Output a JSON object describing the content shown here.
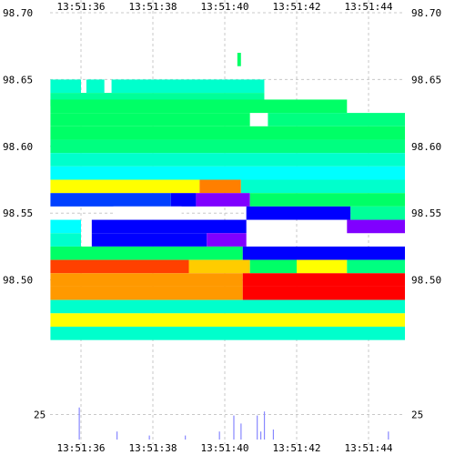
{
  "chart_data": [
    {
      "type": "heatmap",
      "title": "",
      "xlabel": "",
      "ylabel": "",
      "x_ticks": [
        "13:51:36",
        "13:51:38",
        "13:51:40",
        "13:51:42",
        "13:51:44"
      ],
      "x_tick_values_s": [
        0,
        2,
        4,
        6,
        8
      ],
      "y_ticks": [
        "98.70",
        "98.65",
        "98.60",
        "98.55",
        "98.50"
      ],
      "y_tick_values": [
        98.7,
        98.65,
        98.6,
        98.55,
        98.5
      ],
      "ylim": [
        98.4575,
        98.7
      ],
      "grid": true,
      "color_scale": [
        "#ff0000",
        "#ff7f00",
        "#ffff00",
        "#00ff80",
        "#00ffff",
        "#0000ff",
        "#8000ff"
      ],
      "rows": [
        {
          "price": 98.665,
          "segments": [
            {
              "x0": 4.35,
              "x1": 4.45,
              "color": "#00ff66"
            }
          ]
        },
        {
          "price": 98.645,
          "segments": [
            {
              "x0": -0.85,
              "x1": 0.0,
              "color": "#00ffcc"
            },
            {
              "x0": 0.15,
              "x1": 0.65,
              "color": "#00ffcc"
            },
            {
              "x0": 0.85,
              "x1": 5.1,
              "color": "#00ffcc"
            }
          ]
        },
        {
          "price": 98.635,
          "segments": [
            {
              "x0": -0.85,
              "x1": 5.1,
              "color": "#00ff99"
            }
          ]
        },
        {
          "price": 98.63,
          "segments": [
            {
              "x0": -0.85,
              "x1": 7.4,
              "color": "#00ff66"
            }
          ]
        },
        {
          "price": 98.62,
          "segments": [
            {
              "x0": -0.85,
              "x1": 4.7,
              "color": "#00ff66"
            },
            {
              "x0": 5.2,
              "x1": 9.95,
              "color": "#00ff80"
            }
          ]
        },
        {
          "price": 98.61,
          "segments": [
            {
              "x0": -0.85,
              "x1": 9.95,
              "color": "#00ff66"
            }
          ]
        },
        {
          "price": 98.6,
          "segments": [
            {
              "x0": -0.85,
              "x1": 9.95,
              "color": "#00ff80"
            }
          ]
        },
        {
          "price": 98.59,
          "segments": [
            {
              "x0": -0.85,
              "x1": 9.95,
              "color": "#00ffcc"
            }
          ]
        },
        {
          "price": 98.58,
          "segments": [
            {
              "x0": -0.85,
              "x1": 9.95,
              "color": "#00ffff"
            }
          ]
        },
        {
          "price": 98.57,
          "segments": [
            {
              "x0": -0.85,
              "x1": 3.3,
              "color": "#ffff00"
            },
            {
              "x0": 3.3,
              "x1": 4.45,
              "color": "#ff7f00"
            },
            {
              "x0": 4.45,
              "x1": 9.95,
              "color": "#00ffcc"
            }
          ]
        },
        {
          "price": 98.56,
          "segments": [
            {
              "x0": -0.85,
              "x1": 2.5,
              "color": "#0040ff"
            },
            {
              "x0": 2.5,
              "x1": 3.2,
              "color": "#0000ff"
            },
            {
              "x0": 3.2,
              "x1": 4.7,
              "color": "#8000ff"
            },
            {
              "x0": 4.7,
              "x1": 9.95,
              "color": "#00ff66"
            }
          ]
        },
        {
          "price": 98.55,
          "segments": [
            {
              "x0": 0.9,
              "x1": 2.8,
              "color": "#ffffff"
            },
            {
              "x0": 4.6,
              "x1": 7.5,
              "color": "#0000ff"
            },
            {
              "x0": 7.5,
              "x1": 9.95,
              "color": "#00ff99"
            }
          ]
        },
        {
          "price": 98.54,
          "segments": [
            {
              "x0": -0.85,
              "x1": 0.0,
              "color": "#00ffff"
            },
            {
              "x0": 0.3,
              "x1": 4.6,
              "color": "#0000ff"
            },
            {
              "x0": 7.4,
              "x1": 9.95,
              "color": "#8000ff"
            }
          ]
        },
        {
          "price": 98.53,
          "segments": [
            {
              "x0": -0.85,
              "x1": 0.0,
              "color": "#00ffcc"
            },
            {
              "x0": 0.3,
              "x1": 3.5,
              "color": "#0000ff"
            },
            {
              "x0": 3.5,
              "x1": 4.6,
              "color": "#8000ff"
            }
          ]
        },
        {
          "price": 98.52,
          "segments": [
            {
              "x0": -0.85,
              "x1": 4.5,
              "color": "#00ff66"
            },
            {
              "x0": 4.5,
              "x1": 9.95,
              "color": "#0000ff"
            }
          ]
        },
        {
          "price": 98.51,
          "segments": [
            {
              "x0": -0.85,
              "x1": 3.0,
              "color": "#ff4000"
            },
            {
              "x0": 3.0,
              "x1": 4.7,
              "color": "#ffcc00"
            },
            {
              "x0": 4.7,
              "x1": 6.0,
              "color": "#00ff66"
            },
            {
              "x0": 6.0,
              "x1": 7.4,
              "color": "#ffff00"
            },
            {
              "x0": 7.4,
              "x1": 9.95,
              "color": "#00ff80"
            }
          ]
        },
        {
          "price": 98.5,
          "segments": [
            {
              "x0": -0.85,
              "x1": 4.5,
              "color": "#ff9900"
            },
            {
              "x0": 4.5,
              "x1": 9.95,
              "color": "#ff0000"
            }
          ]
        },
        {
          "price": 98.49,
          "segments": [
            {
              "x0": -0.85,
              "x1": 4.5,
              "color": "#ff9900"
            },
            {
              "x0": 4.5,
              "x1": 9.95,
              "color": "#ff0000"
            }
          ]
        },
        {
          "price": 98.48,
          "segments": [
            {
              "x0": -0.85,
              "x1": 9.95,
              "color": "#00ffcc"
            }
          ]
        },
        {
          "price": 98.47,
          "segments": [
            {
              "x0": -0.85,
              "x1": 9.95,
              "color": "#ffff00"
            }
          ]
        },
        {
          "price": 98.46,
          "segments": [
            {
              "x0": -0.85,
              "x1": 9.95,
              "color": "#00ffcc"
            }
          ]
        }
      ]
    },
    {
      "type": "bar",
      "title": "",
      "xlabel": "",
      "ylabel": "",
      "x_ticks": [
        "13:51:36",
        "13:51:38",
        "13:51:40",
        "13:51:42",
        "13:51:44"
      ],
      "y_ticks": [
        "25"
      ],
      "ylim": [
        0,
        80
      ],
      "bar_color": "#8888ff",
      "x_s": [
        -0.05,
        1.0,
        1.9,
        2.9,
        3.85,
        4.25,
        4.45,
        4.9,
        5.0,
        5.1,
        5.35,
        8.55
      ],
      "values": [
        32,
        8,
        4,
        4,
        8,
        24,
        16,
        24,
        8,
        28,
        10,
        8
      ]
    }
  ]
}
